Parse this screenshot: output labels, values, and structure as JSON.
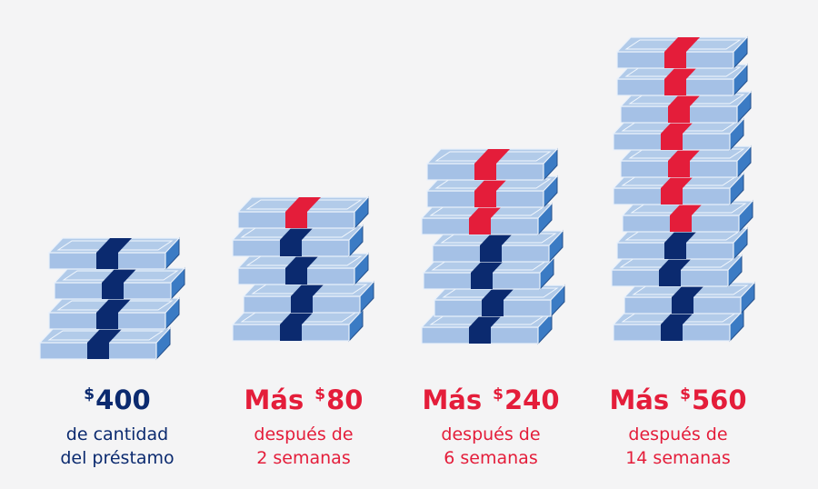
{
  "colors": {
    "navy": "#0b2a6f",
    "red": "#e41d3a",
    "bill_top": "#b2cbe9",
    "bill_face": "#a5c1e6",
    "bill_side": "#3b7bc4",
    "bill_edge": "#24508c",
    "bill_outline": "#e9f1fb",
    "background": "#f4f4f5"
  },
  "stacks": [
    {
      "bills": 4,
      "red_bands": 0,
      "caption": {
        "prefix": "",
        "dollar": "$",
        "amount": "400",
        "line1": "de cantidad",
        "line2": "del préstamo",
        "accent": "#0b2a6f"
      }
    },
    {
      "bills": 5,
      "red_bands": 1,
      "caption": {
        "prefix": "Más",
        "dollar": "$",
        "amount": "80",
        "line1": "después de",
        "line2": "2 semanas",
        "accent": "#e41d3a"
      }
    },
    {
      "bills": 7,
      "red_bands": 3,
      "caption": {
        "prefix": "Más",
        "dollar": "$",
        "amount": "240",
        "line1": "después de",
        "line2": "6 semanas",
        "accent": "#e41d3a"
      }
    },
    {
      "bills": 11,
      "red_bands": 7,
      "caption": {
        "prefix": "Más",
        "dollar": "$",
        "amount": "560",
        "line1": "después de",
        "line2": "14 semanas",
        "accent": "#e41d3a"
      }
    }
  ]
}
